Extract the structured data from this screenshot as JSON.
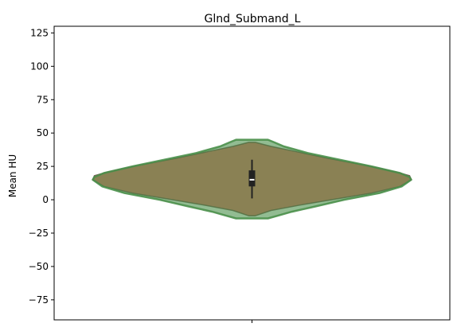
{
  "chart_data": {
    "type": "violin",
    "title": "Glnd_Submand_L",
    "xlabel": "",
    "ylabel": "Mean HU",
    "ylim": [
      -90,
      130
    ],
    "yticks": [
      -75,
      -50,
      -25,
      0,
      25,
      50,
      75,
      100,
      125
    ],
    "grid": false,
    "legend": "none",
    "series": [
      {
        "color": "#e8544a",
        "fill_opacity": 0.85,
        "min": -12,
        "max": 43,
        "density_y": [
          -12,
          -8,
          -4,
          0,
          5,
          10,
          15,
          18,
          21,
          26,
          31,
          36,
          40,
          43
        ],
        "density_w": [
          0.02,
          0.12,
          0.3,
          0.5,
          0.75,
          0.93,
          1.0,
          0.99,
          0.9,
          0.7,
          0.48,
          0.28,
          0.12,
          0.02
        ]
      },
      {
        "color": "#4a8f4a",
        "fill_opacity": 0.6,
        "min": -14,
        "max": 45,
        "density_y": [
          -14,
          -12,
          -9,
          -5,
          0,
          5,
          10,
          15,
          17,
          20,
          25,
          30,
          35,
          40,
          43,
          45
        ],
        "density_w": [
          0.1,
          0.16,
          0.25,
          0.4,
          0.58,
          0.8,
          0.94,
          1.0,
          0.99,
          0.93,
          0.75,
          0.55,
          0.35,
          0.2,
          0.14,
          0.1
        ]
      }
    ],
    "box": {
      "q1": 10,
      "median": 15,
      "q3": 22,
      "whisker_low": 1,
      "whisker_high": 30
    }
  }
}
